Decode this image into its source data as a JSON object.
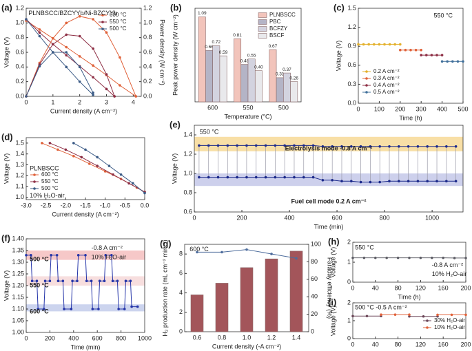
{
  "chart_data": [
    {
      "panel": "(a)",
      "type": "line",
      "annotations": [
        "PLNBSCC/BZCYYb/Ni-BZCYYb"
      ],
      "xlabel": "Current density (A cm⁻²)",
      "ylabel": "Voltage (V)",
      "y2label": "Power density (W cm⁻²)",
      "xlim": [
        0,
        4.3
      ],
      "xticks": [
        0,
        1,
        2,
        3,
        4
      ],
      "ylim": [
        0,
        1.2
      ],
      "yticks": [
        {
          "value": 0,
          "label": "0.0"
        },
        0.2,
        0.4,
        0.6,
        0.8,
        {
          "value": 1,
          "label": "1.0"
        },
        1.2
      ],
      "y2lim": [
        0,
        1.2
      ],
      "y2ticks": [
        {
          "value": 0,
          "label": "0.0"
        },
        0.2,
        0.4,
        0.6,
        0.8,
        {
          "value": 1,
          "label": "1.0"
        },
        1.2
      ],
      "legend": "upper right",
      "series": [
        {
          "name": "600 °C",
          "color": "#e0623a",
          "x": [
            0,
            0.5,
            1,
            1.5,
            2,
            2.5,
            3,
            3.5,
            4.1
          ],
          "values": [
            1.03,
            0.91,
            0.79,
            0.67,
            0.545,
            0.42,
            0.29,
            0.15,
            0
          ]
        },
        {
          "name": "550 °C",
          "color": "#8e2f45",
          "x": [
            0,
            0.5,
            1,
            1.5,
            2,
            2.5,
            3,
            3.3
          ],
          "values": [
            1.05,
            0.87,
            0.71,
            0.56,
            0.41,
            0.26,
            0.1,
            0
          ]
        },
        {
          "name": "500 °C",
          "color": "#3b5b86",
          "x": [
            0,
            0.5,
            1,
            1.5,
            2,
            2.5
          ],
          "values": [
            1.05,
            0.82,
            0.6,
            0.4,
            0.2,
            0.02
          ]
        },
        {
          "color": "#e0623a",
          "axis": "y2",
          "x": [
            0,
            0.5,
            1,
            1.5,
            2,
            2.5,
            3,
            3.5,
            4.1
          ],
          "values": [
            0,
            0.455,
            0.79,
            1.0,
            1.09,
            1.05,
            0.87,
            0.53,
            0
          ]
        },
        {
          "color": "#8e2f45",
          "axis": "y2",
          "x": [
            0,
            0.5,
            1,
            1.5,
            2,
            2.5,
            3,
            3.3
          ],
          "values": [
            0,
            0.435,
            0.71,
            0.84,
            0.82,
            0.65,
            0.3,
            0
          ]
        },
        {
          "color": "#3b5b86",
          "axis": "y2",
          "x": [
            0,
            0.5,
            1,
            1.5,
            2,
            2.5
          ],
          "values": [
            0,
            0.41,
            0.6,
            0.6,
            0.4,
            0.05
          ]
        }
      ]
    },
    {
      "panel": "(b)",
      "type": "bar",
      "xlabel": "Temperature (°C)",
      "ylabel": "Peak power density (W cm⁻²)",
      "categories": [
        "600",
        "550",
        "500"
      ],
      "ylim": [
        0,
        1.2
      ],
      "legend": "upper right",
      "series": [
        {
          "name": "PLNBSCC",
          "color": "#f2c4bb",
          "values": [
            1.09,
            0.81,
            0.67
          ],
          "value_labels": [
            "1.09",
            "0.81",
            "0.67"
          ]
        },
        {
          "name": "PBC",
          "color": "#b4b4c6",
          "values": [
            0.66,
            0.48,
            0.31
          ],
          "value_labels": [
            "0.66",
            "0.48",
            "0.31"
          ]
        },
        {
          "name": "BCFZY",
          "color": "#d3d3df",
          "values": [
            0.72,
            0.55,
            0.37
          ],
          "value_labels": [
            "0.72",
            "0.55",
            "0.37"
          ]
        },
        {
          "name": "BSCF",
          "color": "#e9e9ec",
          "values": [
            0.59,
            0.4,
            0.26
          ],
          "value_labels": [
            "0.59",
            "0.40",
            "0.26"
          ]
        }
      ]
    },
    {
      "panel": "(c)",
      "type": "line",
      "annotations": [
        "550 °C"
      ],
      "xlabel": "Time (h)",
      "ylabel": "Voltage (V)",
      "xlim": [
        0,
        500
      ],
      "xticks": [
        0,
        100,
        200,
        300,
        400,
        500
      ],
      "ylim": [
        0,
        1.5
      ],
      "yticks": [
        {
          "value": 0,
          "label": "0.0"
        },
        0.3,
        0.6,
        0.9,
        1.2,
        1.5
      ],
      "legend": "lower left",
      "series": [
        {
          "name": "0.2 A cm⁻²",
          "color": "#e3b02a",
          "x": [
            0,
            25,
            50,
            75,
            100,
            125,
            150,
            175,
            200
          ],
          "values": [
            0.93,
            0.93,
            0.93,
            0.93,
            0.93,
            0.93,
            0.93,
            0.93,
            0.93
          ]
        },
        {
          "name": "0.3 A cm⁻²",
          "color": "#e0623a",
          "x": [
            200,
            225,
            250,
            275,
            300
          ],
          "values": [
            0.84,
            0.84,
            0.84,
            0.84,
            0.84
          ]
        },
        {
          "name": "0.4 A cm⁻²",
          "color": "#8e2f45",
          "x": [
            300,
            325,
            350,
            375,
            400
          ],
          "values": [
            0.76,
            0.76,
            0.76,
            0.76,
            0.76
          ]
        },
        {
          "name": "0.5 A cm⁻²",
          "color": "#3f6f9a",
          "x": [
            400,
            425,
            450,
            475,
            500
          ],
          "values": [
            0.66,
            0.66,
            0.66,
            0.66,
            0.66
          ]
        }
      ]
    },
    {
      "panel": "(d)",
      "type": "line",
      "annotations": [
        "PLNBSCC",
        "10% H₂O-air"
      ],
      "xlabel": "Current density (A cm⁻²)",
      "ylabel": "Voltage (V)",
      "xlim": [
        -3,
        0
      ],
      "xticks": [
        {
          "value": -3,
          "label": "-3.0"
        },
        -2.5,
        {
          "value": -2,
          "label": "-2.0"
        },
        -1.5,
        {
          "value": -1,
          "label": "-1.0"
        },
        -0.5,
        {
          "value": 0,
          "label": "0.0"
        }
      ],
      "ylim": [
        0.98,
        1.55
      ],
      "yticks": [
        {
          "value": 1,
          "label": "1.0"
        },
        1.1,
        1.2,
        1.3,
        1.4,
        1.5
      ],
      "legend": "lower left",
      "series": [
        {
          "name": "600 °C",
          "color": "#e0623a",
          "x": [
            -2.6,
            -2.2,
            -1.8,
            -1.4,
            -1.0,
            -0.6,
            -0.2,
            0
          ],
          "values": [
            1.5,
            1.44,
            1.38,
            1.31,
            1.24,
            1.17,
            1.09,
            1.05
          ]
        },
        {
          "name": "550 °C",
          "color": "#8e2f45",
          "x": [
            -2.4,
            -2.0,
            -1.6,
            -1.2,
            -0.8,
            -0.4,
            0
          ],
          "values": [
            1.5,
            1.44,
            1.37,
            1.29,
            1.21,
            1.13,
            1.05
          ]
        },
        {
          "name": "500 °C",
          "color": "#3b5b86",
          "x": [
            -1.8,
            -1.5,
            -1.2,
            -0.9,
            -0.6,
            -0.3,
            0
          ],
          "values": [
            1.5,
            1.44,
            1.37,
            1.29,
            1.21,
            1.13,
            1.04
          ]
        }
      ]
    },
    {
      "panel": "(e)",
      "type": "line",
      "annotations": [
        "550 °C",
        "Electrolysis mode -0.8 A cm⁻²",
        "Fuel cell mode 0.2 A cm⁻²"
      ],
      "xlabel": "Time (min)",
      "ylabel": "Voltage (V)",
      "droplines": true,
      "xlim": [
        0,
        1130
      ],
      "xticks": [
        0,
        200,
        400,
        600,
        800,
        1000
      ],
      "ylim": [
        0.6,
        1.5
      ],
      "yticks": [
        0.6,
        0.8,
        {
          "value": 1,
          "label": "1.0"
        },
        1.2,
        1.4
      ],
      "bands": [
        {
          "ymin": 1.23,
          "ymax": 1.38,
          "color": "#f8dfa6"
        },
        {
          "ymin": 0.87,
          "ymax": 1.0,
          "color": "#cdd0ec"
        }
      ],
      "series": [
        {
          "color": "#1c2a8c",
          "x": [
            20,
            60,
            100,
            140,
            180,
            220,
            260,
            300,
            340,
            380,
            420,
            460,
            500,
            540,
            580,
            620,
            660,
            700,
            740,
            780,
            820,
            860,
            900,
            940,
            980,
            1020,
            1060,
            1100
          ],
          "values": [
            1.29,
            1.29,
            1.29,
            1.29,
            1.29,
            1.29,
            1.29,
            1.29,
            1.29,
            1.29,
            1.29,
            1.29,
            1.29,
            1.28,
            1.28,
            1.28,
            1.28,
            1.28,
            1.28,
            1.28,
            1.28,
            1.28,
            1.28,
            1.28,
            1.28,
            1.28,
            1.28,
            1.28
          ]
        },
        {
          "color": "#1c2a8c",
          "x": [
            20,
            60,
            100,
            140,
            180,
            220,
            260,
            300,
            340,
            380,
            420,
            460,
            500,
            540,
            580,
            620,
            660,
            700,
            740,
            780,
            820,
            860,
            900,
            940,
            980,
            1020,
            1060,
            1100
          ],
          "values": [
            0.96,
            0.96,
            0.96,
            0.96,
            0.96,
            0.96,
            0.96,
            0.96,
            0.96,
            0.96,
            0.96,
            0.96,
            0.96,
            0.93,
            0.93,
            0.92,
            0.92,
            0.91,
            0.91,
            0.91,
            0.92,
            0.92,
            0.92,
            0.92,
            0.92,
            0.92,
            0.92,
            0.92
          ]
        }
      ]
    },
    {
      "panel": "(f)",
      "type": "line",
      "annotations": [
        "-0.8 A cm⁻²",
        "10% H₂O-air",
        "500 °C",
        "550 °C",
        "600 °C"
      ],
      "xlabel": "Time (min)",
      "ylabel": "Voltage (V)",
      "xlim": [
        0,
        1000
      ],
      "xticks": [
        0,
        200,
        400,
        600,
        800,
        1000
      ],
      "ylim": [
        1.0,
        1.4
      ],
      "yticks": [
        {
          "value": 1,
          "label": "1.00"
        },
        1.05,
        {
          "value": 1.1,
          "label": "1.10"
        },
        1.15,
        {
          "value": 1.2,
          "label": "1.20"
        },
        1.25,
        {
          "value": 1.3,
          "label": "1.30"
        },
        1.35,
        {
          "value": 1.4,
          "label": "1.40"
        }
      ],
      "bands": [
        {
          "ymin": 1.31,
          "ymax": 1.35,
          "color": "#f6c8c8"
        },
        {
          "ymin": 1.2,
          "ymax": 1.24,
          "color": "#f7dede"
        },
        {
          "ymin": 1.09,
          "ymax": 1.12,
          "color": "#ccd4ee"
        }
      ],
      "series": [
        {
          "color": "#2434a8",
          "x": [
            0,
            40,
            50,
            90,
            100,
            150,
            160,
            200,
            210,
            260,
            270,
            310,
            320,
            380,
            390,
            430,
            440,
            500,
            510,
            550,
            560,
            610,
            620,
            660,
            670,
            720,
            730,
            770,
            780,
            830,
            840,
            880,
            890,
            940
          ],
          "values": [
            1.33,
            1.33,
            1.22,
            1.22,
            1.1,
            1.1,
            1.22,
            1.22,
            1.33,
            1.33,
            1.22,
            1.22,
            1.1,
            1.1,
            1.22,
            1.22,
            1.33,
            1.33,
            1.22,
            1.22,
            1.1,
            1.1,
            1.22,
            1.22,
            1.33,
            1.33,
            1.22,
            1.22,
            1.1,
            1.1,
            1.22,
            1.22,
            1.11,
            1.11
          ]
        }
      ]
    },
    {
      "panel": "(g)",
      "type": "bar",
      "annotations": [
        "600 °C"
      ],
      "xlabel": "Current density (-A cm⁻²)",
      "ylabel": "H₂ production rate (mL cm⁻² min⁻¹)",
      "y2label": "Faraday efficiency (%)",
      "categories": [
        "0.6",
        "0.8",
        "1.0",
        "1.2",
        "1.4"
      ],
      "ylim": [
        0,
        9
      ],
      "yticks": [
        0,
        2,
        4,
        6,
        8
      ],
      "y2lim": [
        0,
        100
      ],
      "y2ticks": [
        0,
        20,
        40,
        60,
        80,
        100
      ],
      "series": [
        {
          "color": "#a3555a",
          "values": [
            3.8,
            5.0,
            6.6,
            7.5,
            8.3
          ]
        },
        {
          "color": "#4d6c9c",
          "axis": "y2",
          "values": [
            91,
            91,
            94,
            89,
            84
          ]
        }
      ]
    },
    {
      "panel": "(h)",
      "type": "line",
      "annotations": [
        "550 °C",
        "-0.8 A cm⁻²",
        "10% H₂O-air"
      ],
      "xlabel": "Time (h)",
      "ylabel": "Voltage (V)",
      "xlim": [
        0,
        200
      ],
      "xticks": [
        0,
        40,
        80,
        120,
        160,
        200
      ],
      "ylim": [
        0,
        2
      ],
      "yticks": [
        0,
        1,
        2
      ],
      "series": [
        {
          "color": "#5e5e66",
          "x": [
            0,
            20,
            40,
            60,
            80,
            100,
            120,
            140,
            160,
            180,
            200
          ],
          "values": [
            1.22,
            1.22,
            1.22,
            1.22,
            1.22,
            1.22,
            1.22,
            1.22,
            1.22,
            1.21,
            1.21
          ]
        }
      ]
    },
    {
      "panel": "(i)",
      "type": "line",
      "annotations": [
        "500 °C -0.5 A cm⁻²"
      ],
      "ylabel": "Voltage (V)",
      "xlim": [
        0,
        200
      ],
      "xticks": [
        0,
        40,
        80,
        120,
        160,
        200
      ],
      "ylim": [
        0,
        2
      ],
      "yticks": [
        0,
        1,
        2
      ],
      "legend": "lower right",
      "series": [
        {
          "name": "30% H₂O-air",
          "color": "#6b4658",
          "x": [
            0,
            25,
            50,
            75,
            100,
            125,
            150
          ],
          "values": [
            1.26,
            1.26,
            1.26,
            null,
            1.24,
            1.24,
            1.24
          ]
        },
        {
          "name": "10% H₂O-air",
          "color": "#e0623a",
          "x": [
            50,
            75,
            100,
            125,
            150,
            175,
            200
          ],
          "values": [
            1.34,
            1.34,
            1.34,
            null,
            1.33,
            1.33,
            1.33
          ]
        }
      ]
    }
  ]
}
